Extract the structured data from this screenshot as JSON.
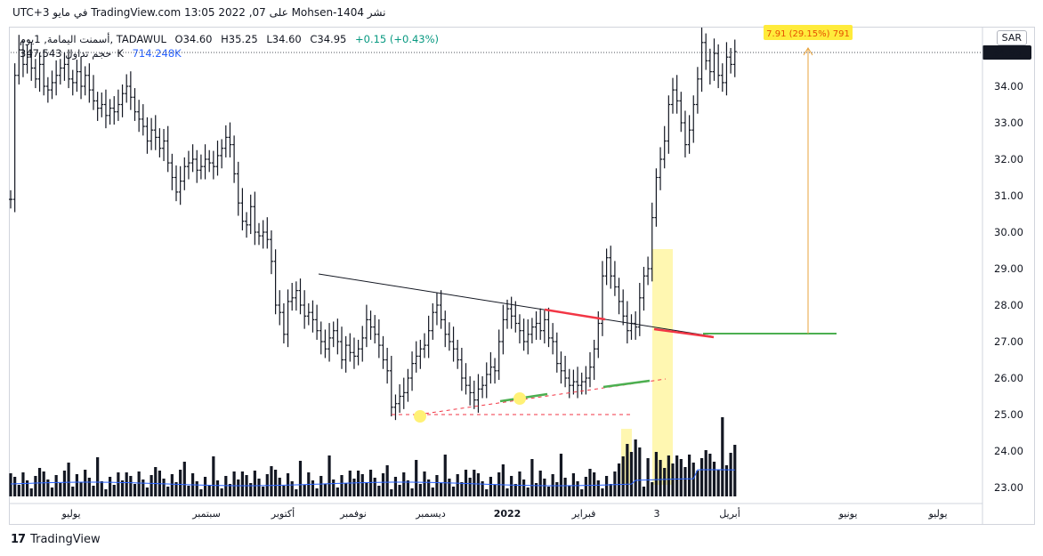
{
  "header": {
    "published_line": "نشر Mohsen-1404 على TradingView.com 13:05 2022 ,07 في مايو UTC+3"
  },
  "legend": {
    "symbol": "أسمنت اليمامة, 1يوم, TADAWUL",
    "open": "O34.60",
    "high": "H35.25",
    "low": "L34.60",
    "close": "C34.95",
    "change": "+0.15 (+0.43%)",
    "volume_label": "حجم تداول",
    "volume_value": "347.543K",
    "volume_ma": "714.248K"
  },
  "currency": "SAR",
  "footer": {
    "brand": "TradingView"
  },
  "colors": {
    "bars": "#131722",
    "volume": "#131722",
    "volume_ma": "#2962ff",
    "trendline": "#131722",
    "red_line": "#f23645",
    "green_line": "#4caf50",
    "highlight": "#fff59d",
    "measure": "#e8a33d"
  },
  "chart_data": {
    "type": "ohlc",
    "ylim": [
      22.8,
      35.7
    ],
    "last_price": "34.95",
    "y_ticks": [
      "34.00",
      "33.00",
      "32.00",
      "31.00",
      "30.00",
      "29.00",
      "28.00",
      "27.00",
      "26.00",
      "25.00",
      "24.00",
      "23.00"
    ],
    "x_ticks": [
      "يوليو",
      "سبتمبر",
      "أكتوبر",
      "نوفمبر",
      "ديسمبر",
      "2022",
      "فبراير",
      "3",
      "أبريل",
      "يونيو",
      "يوليو"
    ],
    "measure_label": "7.91 (29.15%) 791",
    "closes": [
      30.9,
      34.3,
      35.0,
      34.6,
      34.8,
      34.5,
      34.2,
      34.6,
      34.0,
      33.9,
      34.1,
      34.3,
      34.5,
      34.6,
      34.2,
      34.1,
      34.4,
      34.0,
      34.3,
      33.9,
      33.6,
      33.4,
      33.5,
      33.2,
      33.4,
      33.3,
      33.5,
      33.8,
      34.0,
      33.7,
      33.3,
      33.1,
      32.9,
      32.5,
      32.8,
      32.6,
      32.3,
      32.5,
      31.9,
      31.5,
      31.1,
      31.4,
      31.8,
      31.9,
      32.0,
      31.7,
      31.8,
      32.0,
      31.9,
      31.8,
      32.1,
      32.3,
      32.6,
      32.4,
      31.6,
      30.8,
      30.3,
      30.2,
      30.7,
      30.0,
      29.9,
      30.0,
      29.8,
      29.2,
      28.0,
      27.8,
      27.2,
      28.1,
      28.2,
      28.4,
      28.0,
      27.7,
      27.8,
      27.6,
      27.3,
      27.0,
      26.8,
      27.1,
      27.3,
      27.0,
      26.5,
      26.9,
      26.7,
      26.6,
      26.8,
      27.1,
      27.6,
      27.4,
      27.2,
      26.9,
      26.5,
      26.2,
      25.2,
      25.3,
      25.5,
      25.6,
      26.0,
      26.4,
      26.6,
      26.8,
      26.9,
      27.3,
      27.8,
      28.0,
      27.6,
      27.2,
      27.0,
      26.8,
      26.5,
      26.0,
      25.8,
      25.6,
      25.4,
      25.7,
      25.8,
      26.1,
      26.3,
      26.2,
      27.0,
      27.6,
      27.9,
      27.7,
      27.5,
      27.3,
      27.0,
      27.2,
      27.4,
      27.5,
      27.3,
      27.6,
      27.1,
      27.0,
      26.4,
      26.2,
      26.0,
      25.8,
      25.9,
      25.8,
      25.9,
      26.0,
      26.3,
      26.8,
      27.5,
      28.8,
      29.3,
      28.8,
      28.5,
      28.1,
      27.7,
      27.3,
      27.5,
      27.4,
      28.2,
      28.8,
      29.0,
      30.4,
      31.5,
      32.0,
      32.5,
      33.5,
      33.9,
      33.6,
      33.0,
      32.4,
      32.8,
      33.5,
      34.2,
      35.2,
      34.7,
      34.4,
      34.9,
      34.3,
      34.1,
      34.8,
      34.6,
      34.95
    ]
  }
}
